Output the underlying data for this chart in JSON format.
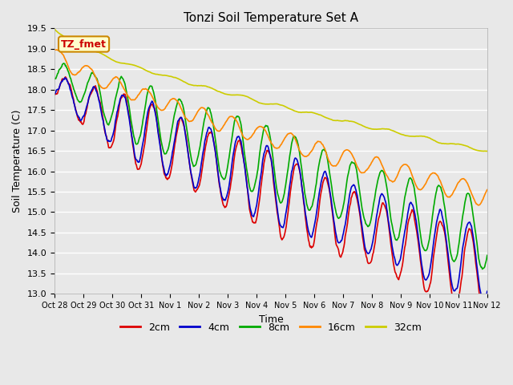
{
  "title": "Tonzi Soil Temperature Set A",
  "xlabel": "Time",
  "ylabel": "Soil Temperature (C)",
  "ylim": [
    13.0,
    19.5
  ],
  "bg_color": "#e8e8e8",
  "annotation_text": "TZ_fmet",
  "annotation_color": "#cc0000",
  "annotation_bg": "#ffffcc",
  "annotation_border": "#cc8800",
  "xtick_labels": [
    "Oct 28",
    "Oct 29",
    "Oct 30",
    "Oct 31",
    "Nov 1",
    "Nov 2",
    "Nov 3",
    "Nov 4",
    "Nov 5",
    "Nov 6",
    "Nov 7",
    "Nov 8",
    "Nov 9",
    "Nov 10",
    "Nov 11",
    "Nov 12"
  ],
  "series_colors": [
    "#dd0000",
    "#0000cc",
    "#00aa00",
    "#ff8800",
    "#cccc00"
  ],
  "series_names": [
    "2cm",
    "4cm",
    "8cm",
    "16cm",
    "32cm"
  ],
  "linewidth": 1.2
}
